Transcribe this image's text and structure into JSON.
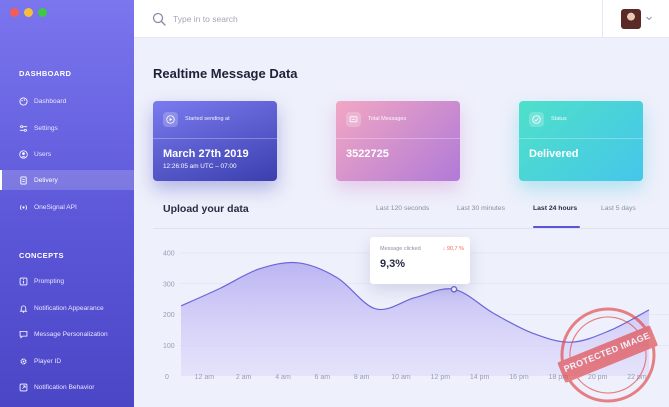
{
  "window": {
    "controls": [
      "#f45d55",
      "#f6bd3a",
      "#3ec845"
    ]
  },
  "sidebar": {
    "dashboard_heading": "DASHBOARD",
    "dashboard_items": [
      {
        "label": "Dashboard",
        "icon": "palette-icon"
      },
      {
        "label": "Settings",
        "icon": "sliders-icon"
      },
      {
        "label": "Users",
        "icon": "user-icon"
      },
      {
        "label": "Delivery",
        "icon": "file-icon",
        "active": true
      },
      {
        "label": "OneSignal API",
        "icon": "broadcast-icon"
      }
    ],
    "concepts_heading": "CONCEPTS",
    "concepts_items": [
      {
        "label": "Prompting",
        "icon": "info-box-icon"
      },
      {
        "label": "Notification Appearance",
        "icon": "bell-icon"
      },
      {
        "label": "Message Personalization",
        "icon": "message-icon"
      },
      {
        "label": "Player ID",
        "icon": "gear-icon"
      },
      {
        "label": "Notification Behavior",
        "icon": "expand-icon"
      }
    ]
  },
  "search": {
    "placeholder": "Type in to search",
    "value": ""
  },
  "page": {
    "title": "Realtime Message Data"
  },
  "cards": [
    {
      "label": "Started sending at",
      "value": "March 27th 2019",
      "sub": "12:26:05 am UTC – 07:00",
      "icon": "play-icon"
    },
    {
      "label": "Total Messages",
      "value": "3522725",
      "sub": "",
      "icon": "message-icon"
    },
    {
      "label": "Status",
      "value": "Delivered",
      "sub": "",
      "icon": "check-circle-icon"
    }
  ],
  "upload": {
    "title": "Upload your data",
    "tabs": [
      {
        "label": "Last 120 seconds",
        "active": false
      },
      {
        "label": "Last 30 minutes",
        "active": false
      },
      {
        "label": "Last 24 hours",
        "active": true
      },
      {
        "label": "Last 5 days",
        "active": false
      }
    ]
  },
  "tooltip": {
    "label": "Message clicked",
    "change": "↓ 90,7 %",
    "value": "9,3%"
  },
  "stamp": {
    "text": "PROTECTED IMAGE"
  },
  "chart_data": {
    "type": "area",
    "x": [
      "0",
      "12 am",
      "2 am",
      "4 am",
      "6 am",
      "8 am",
      "10 am",
      "12 pm",
      "14 pm",
      "16 pm",
      "18 pm",
      "20 pm",
      "22 pm"
    ],
    "y_ticks": [
      "400",
      "300",
      "200",
      "100"
    ],
    "ylim": [
      0,
      400
    ],
    "values": [
      228,
      285,
      348,
      368,
      320,
      218,
      255,
      282,
      205,
      140,
      110,
      148,
      215
    ],
    "highlight_index": 7,
    "colors": {
      "line": "#6b66d9",
      "fill": "#c6c0f4"
    },
    "grid": true
  }
}
